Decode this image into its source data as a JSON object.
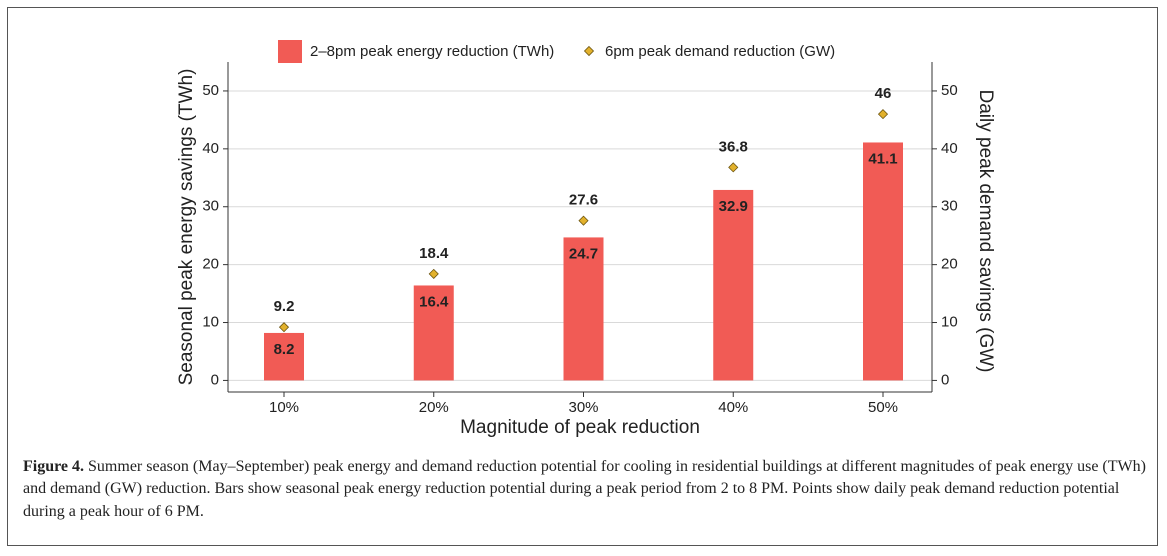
{
  "chart_data": {
    "type": "bar",
    "x_label": "Magnitude of peak reduction",
    "y_label": "Seasonal peak energy savings (TWh)",
    "y2_label": "Daily peak demand savings (GW)",
    "categories": [
      "10%",
      "20%",
      "30%",
      "40%",
      "50%"
    ],
    "series": [
      {
        "name": "2–8pm peak energy reduction (TWh)",
        "type": "bar",
        "color": "#f15b55",
        "values": [
          8.2,
          16.4,
          24.7,
          32.9,
          41.1
        ]
      },
      {
        "name": "6pm peak demand reduction (GW)",
        "type": "point",
        "axis": "y2",
        "color": "#e2b12c",
        "values": [
          9.2,
          18.4,
          27.6,
          36.8,
          46
        ]
      }
    ],
    "ylim": [
      -2,
      55
    ],
    "yticks": [
      0,
      10,
      20,
      30,
      40,
      50
    ],
    "y2lim": [
      -2,
      55
    ],
    "y2ticks": [
      0,
      10,
      20,
      30,
      40,
      50
    ],
    "grid": true,
    "legend": "top",
    "data_labels": true
  },
  "figure": {
    "label": "Figure 4.",
    "caption": "Summer season (May–September) peak energy and demand reduction potential for cooling in residential buildings at different magnitudes of peak energy use (TWh) and demand (GW) reduction. Bars show seasonal peak energy reduction potential during a peak period from 2 to 8 PM. Points show daily peak demand reduction potential during a peak hour of 6 PM."
  }
}
